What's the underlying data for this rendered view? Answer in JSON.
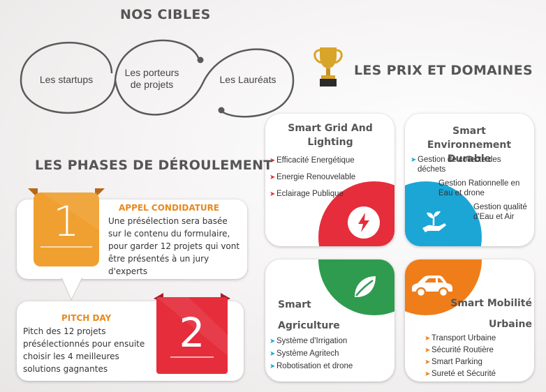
{
  "targets": {
    "title": "NOS CIBLES",
    "items": [
      "Les startups",
      "Les porteurs\nde projets",
      "Les Lauréats"
    ]
  },
  "prizes": {
    "title": "LES PRIX ET DOMAINES",
    "domains": [
      {
        "title": "Smart Grid And Lighting",
        "color": "#e52d3b",
        "icon": "lightning-icon",
        "items": [
          "Efficacité Energétique",
          "Energie Renouvelable",
          "Eclairage Publique"
        ]
      },
      {
        "title": "Smart Environnement Durable",
        "color": "#1ba6d6",
        "icon": "sprout-hand-icon",
        "items": [
          "Gestion de collecte des déchets",
          "Gestion Rationnelle en Eau et drone",
          "Gestion qualité d'Eau et Air"
        ]
      },
      {
        "title": "Smart Agriculture",
        "color": "#2f9b4f",
        "icon": "leaf-icon",
        "items": [
          "Système d'Irrigation",
          "Système Agritech",
          "Robotisation et drone"
        ]
      },
      {
        "title": "Smart Mobilité Urbaine",
        "color": "#ef7d1a",
        "icon": "car-icon",
        "items": [
          "Transport Urbaine",
          "Sécurité Routière",
          "Smart Parking",
          "Sureté et Sécurité"
        ]
      }
    ]
  },
  "phases": {
    "title": "LES PHASES DE DÉROULEMENT",
    "items": [
      {
        "number": "1",
        "color": "#f0a030",
        "heading": "APPEL CONDIDATURE",
        "text": "Une présélection sera basée sur le contenu du formulaire, pour garder 12 projets qui vont être présentés à un jury d'experts"
      },
      {
        "number": "2",
        "color": "#e52d3b",
        "heading": "PITCH DAY",
        "text": "Pitch des 12 projets présélectionnés pour ensuite choisir les 4 meilleures solutions gagnantes"
      }
    ]
  }
}
